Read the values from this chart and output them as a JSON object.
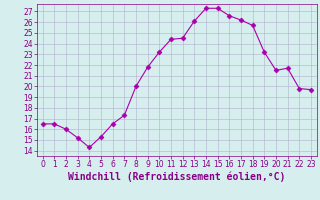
{
  "x": [
    0,
    1,
    2,
    3,
    4,
    5,
    6,
    7,
    8,
    9,
    10,
    11,
    12,
    13,
    14,
    15,
    16,
    17,
    18,
    19,
    20,
    21,
    22,
    23
  ],
  "y": [
    16.5,
    16.5,
    16.0,
    15.2,
    14.3,
    15.3,
    16.5,
    17.3,
    20.0,
    21.8,
    23.2,
    24.4,
    24.5,
    26.1,
    27.3,
    27.3,
    26.6,
    26.2,
    25.7,
    23.2,
    21.5,
    21.7,
    19.8,
    19.7
  ],
  "line_color": "#aa00aa",
  "marker": "D",
  "markersize": 2.5,
  "linewidth": 0.8,
  "xlabel": "Windchill (Refroidissement éolien,°C)",
  "xlim": [
    -0.5,
    23.5
  ],
  "ylim": [
    13.5,
    27.7
  ],
  "yticks": [
    14,
    15,
    16,
    17,
    18,
    19,
    20,
    21,
    22,
    23,
    24,
    25,
    26,
    27
  ],
  "xticks": [
    0,
    1,
    2,
    3,
    4,
    5,
    6,
    7,
    8,
    9,
    10,
    11,
    12,
    13,
    14,
    15,
    16,
    17,
    18,
    19,
    20,
    21,
    22,
    23
  ],
  "background_color": "#d6eeee",
  "grid_color": "#b0b0cc",
  "tick_color": "#880088",
  "label_color": "#880088",
  "tick_fontsize": 5.5,
  "xlabel_fontsize": 7.0
}
